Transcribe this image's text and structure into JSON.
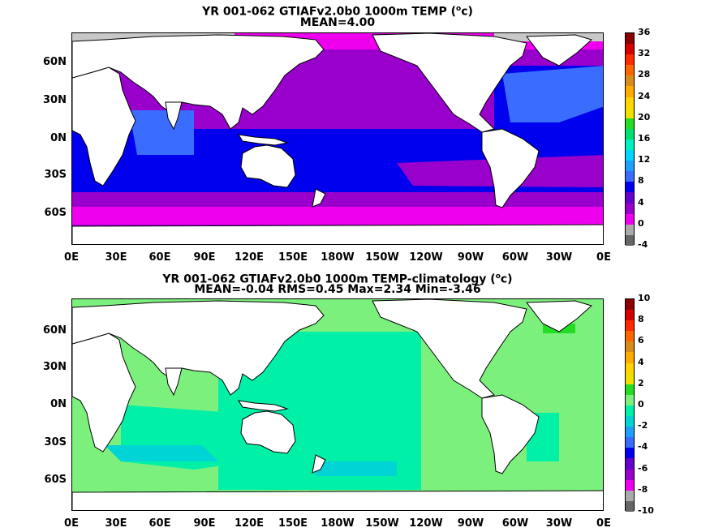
{
  "panels": [
    {
      "title_line1": "YR 001-062 GTIAFv2.0b0 1000m TEMP (",
      "title_sup": "o",
      "title_line1_end": "c)",
      "title_line2": "MEAN=4.00",
      "colorbar": {
        "labels": [
          "36",
          "32",
          "28",
          "24",
          "20",
          "16",
          "12",
          "8",
          "4",
          "0",
          "-4"
        ],
        "colors": [
          "#8b0000",
          "#d40000",
          "#ff2a00",
          "#ff6600",
          "#d98c1a",
          "#ffaa00",
          "#ffd400",
          "#f0e000",
          "#22dd22",
          "#00e070",
          "#00f0c0",
          "#00d4ff",
          "#1ea0ff",
          "#3a6cff",
          "#0000ee",
          "#6600cc",
          "#9900cc",
          "#ee00ee",
          "#aaaaaa",
          "#666666"
        ]
      },
      "lat_labels": [
        "60N",
        "30N",
        "0N",
        "30S",
        "60S"
      ],
      "lon_labels": [
        "0E",
        "30E",
        "60E",
        "90E",
        "120E",
        "150E",
        "180W",
        "150W",
        "120W",
        "90W",
        "60W",
        "30W",
        "0E"
      ]
    },
    {
      "title_line1": "YR 001-062 GTIAFv2.0b0 1000m TEMP-climatology (",
      "title_sup": "o",
      "title_line1_end": "c)",
      "title_line2": "MEAN=-0.04   RMS=0.45   Max=2.34   Min=-3.46",
      "colorbar": {
        "labels": [
          "10",
          "8",
          "6",
          "4",
          "2",
          "0",
          "-2",
          "-4",
          "-6",
          "-8",
          "-10"
        ],
        "colors": [
          "#8b0000",
          "#d40000",
          "#ff2a00",
          "#ff6600",
          "#d98c1a",
          "#ffaa00",
          "#ffd400",
          "#f0e000",
          "#22dd22",
          "#7cf07c",
          "#00f0a8",
          "#00d4d4",
          "#1ea0ff",
          "#3a6cff",
          "#0000ee",
          "#6600cc",
          "#9900cc",
          "#ee00ee",
          "#aaaaaa",
          "#666666"
        ]
      },
      "lat_labels": [
        "60N",
        "30N",
        "0N",
        "30S",
        "60S"
      ],
      "lon_labels": [
        "0E",
        "30E",
        "60E",
        "90E",
        "120E",
        "150E",
        "180W",
        "150W",
        "120W",
        "90W",
        "60W",
        "30W",
        "0E"
      ]
    }
  ]
}
